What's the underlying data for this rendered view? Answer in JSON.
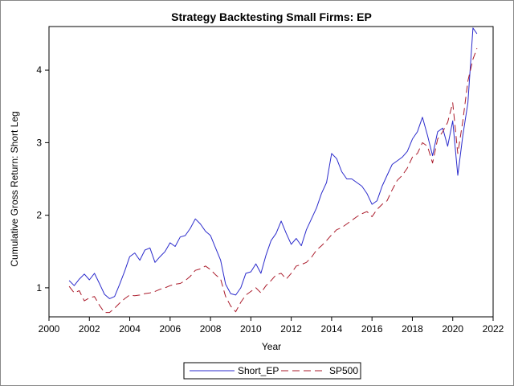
{
  "chart_data": {
    "type": "line",
    "title": "Strategy Backtesting Small Firms: EP",
    "xlabel": "Year",
    "ylabel": "Cumulative Gross Return: Short Leg",
    "xlim": [
      2000.0,
      2022.0
    ],
    "ylim": [
      0.6,
      4.6
    ],
    "x_ticks": [
      "2000",
      "2002",
      "2004",
      "2006",
      "2008",
      "2010",
      "2012",
      "2014",
      "2016",
      "2018",
      "2020",
      "2022"
    ],
    "y_ticks": [
      "1",
      "2",
      "3",
      "4"
    ],
    "grid": false,
    "legend_position": "bottom",
    "series": [
      {
        "name": "Short_EP",
        "color": "#2b2bcc",
        "style": "solid",
        "points": [
          [
            2001.0,
            1.1
          ],
          [
            2001.25,
            1.03
          ],
          [
            2001.5,
            1.12
          ],
          [
            2001.75,
            1.19
          ],
          [
            2002.0,
            1.11
          ],
          [
            2002.25,
            1.2
          ],
          [
            2002.5,
            1.06
          ],
          [
            2002.75,
            0.91
          ],
          [
            2003.0,
            0.85
          ],
          [
            2003.25,
            0.88
          ],
          [
            2003.5,
            1.05
          ],
          [
            2003.75,
            1.23
          ],
          [
            2004.0,
            1.43
          ],
          [
            2004.25,
            1.48
          ],
          [
            2004.5,
            1.38
          ],
          [
            2004.75,
            1.52
          ],
          [
            2005.0,
            1.55
          ],
          [
            2005.25,
            1.35
          ],
          [
            2005.5,
            1.43
          ],
          [
            2005.75,
            1.5
          ],
          [
            2006.0,
            1.62
          ],
          [
            2006.25,
            1.57
          ],
          [
            2006.5,
            1.7
          ],
          [
            2006.75,
            1.72
          ],
          [
            2007.0,
            1.82
          ],
          [
            2007.25,
            1.95
          ],
          [
            2007.5,
            1.88
          ],
          [
            2007.75,
            1.78
          ],
          [
            2008.0,
            1.72
          ],
          [
            2008.25,
            1.55
          ],
          [
            2008.5,
            1.38
          ],
          [
            2008.75,
            1.05
          ],
          [
            2009.0,
            0.92
          ],
          [
            2009.25,
            0.9
          ],
          [
            2009.5,
            1.0
          ],
          [
            2009.75,
            1.2
          ],
          [
            2010.0,
            1.22
          ],
          [
            2010.25,
            1.33
          ],
          [
            2010.5,
            1.2
          ],
          [
            2010.75,
            1.45
          ],
          [
            2011.0,
            1.65
          ],
          [
            2011.25,
            1.75
          ],
          [
            2011.5,
            1.92
          ],
          [
            2011.75,
            1.75
          ],
          [
            2012.0,
            1.6
          ],
          [
            2012.25,
            1.68
          ],
          [
            2012.5,
            1.58
          ],
          [
            2012.75,
            1.8
          ],
          [
            2013.0,
            1.95
          ],
          [
            2013.25,
            2.1
          ],
          [
            2013.5,
            2.3
          ],
          [
            2013.75,
            2.45
          ],
          [
            2014.0,
            2.85
          ],
          [
            2014.25,
            2.78
          ],
          [
            2014.5,
            2.6
          ],
          [
            2014.75,
            2.5
          ],
          [
            2015.0,
            2.5
          ],
          [
            2015.25,
            2.45
          ],
          [
            2015.5,
            2.4
          ],
          [
            2015.75,
            2.3
          ],
          [
            2016.0,
            2.15
          ],
          [
            2016.25,
            2.2
          ],
          [
            2016.5,
            2.4
          ],
          [
            2016.75,
            2.55
          ],
          [
            2017.0,
            2.7
          ],
          [
            2017.25,
            2.75
          ],
          [
            2017.5,
            2.8
          ],
          [
            2017.75,
            2.88
          ],
          [
            2018.0,
            3.05
          ],
          [
            2018.25,
            3.15
          ],
          [
            2018.5,
            3.35
          ],
          [
            2018.75,
            3.1
          ],
          [
            2019.0,
            2.82
          ],
          [
            2019.25,
            3.15
          ],
          [
            2019.5,
            3.2
          ],
          [
            2019.75,
            2.95
          ],
          [
            2020.0,
            3.3
          ],
          [
            2020.25,
            2.55
          ],
          [
            2020.5,
            3.1
          ],
          [
            2020.75,
            3.55
          ],
          [
            2021.0,
            4.58
          ],
          [
            2021.2,
            4.5
          ]
        ]
      },
      {
        "name": "SP500",
        "color": "#aa1a2a",
        "style": "dashed",
        "points": [
          [
            2001.0,
            1.02
          ],
          [
            2001.25,
            0.93
          ],
          [
            2001.5,
            0.96
          ],
          [
            2001.75,
            0.82
          ],
          [
            2002.0,
            0.86
          ],
          [
            2002.25,
            0.88
          ],
          [
            2002.5,
            0.76
          ],
          [
            2002.75,
            0.66
          ],
          [
            2003.0,
            0.66
          ],
          [
            2003.25,
            0.72
          ],
          [
            2003.5,
            0.79
          ],
          [
            2003.75,
            0.85
          ],
          [
            2004.0,
            0.9
          ],
          [
            2004.25,
            0.89
          ],
          [
            2004.5,
            0.9
          ],
          [
            2004.75,
            0.92
          ],
          [
            2005.0,
            0.93
          ],
          [
            2005.25,
            0.95
          ],
          [
            2005.5,
            0.98
          ],
          [
            2005.75,
            1.0
          ],
          [
            2006.0,
            1.03
          ],
          [
            2006.25,
            1.05
          ],
          [
            2006.5,
            1.06
          ],
          [
            2006.75,
            1.1
          ],
          [
            2007.0,
            1.16
          ],
          [
            2007.25,
            1.24
          ],
          [
            2007.5,
            1.26
          ],
          [
            2007.75,
            1.3
          ],
          [
            2008.0,
            1.25
          ],
          [
            2008.25,
            1.18
          ],
          [
            2008.5,
            1.12
          ],
          [
            2008.75,
            0.88
          ],
          [
            2009.0,
            0.75
          ],
          [
            2009.25,
            0.67
          ],
          [
            2009.5,
            0.8
          ],
          [
            2009.75,
            0.9
          ],
          [
            2010.0,
            0.95
          ],
          [
            2010.25,
            1.0
          ],
          [
            2010.5,
            0.93
          ],
          [
            2010.75,
            1.03
          ],
          [
            2011.0,
            1.1
          ],
          [
            2011.25,
            1.18
          ],
          [
            2011.5,
            1.2
          ],
          [
            2011.75,
            1.12
          ],
          [
            2012.0,
            1.2
          ],
          [
            2012.25,
            1.3
          ],
          [
            2012.5,
            1.32
          ],
          [
            2012.75,
            1.35
          ],
          [
            2013.0,
            1.42
          ],
          [
            2013.25,
            1.52
          ],
          [
            2013.5,
            1.58
          ],
          [
            2013.75,
            1.65
          ],
          [
            2014.0,
            1.73
          ],
          [
            2014.25,
            1.8
          ],
          [
            2014.5,
            1.83
          ],
          [
            2014.75,
            1.88
          ],
          [
            2015.0,
            1.93
          ],
          [
            2015.25,
            1.98
          ],
          [
            2015.5,
            2.02
          ],
          [
            2015.75,
            2.05
          ],
          [
            2016.0,
            1.98
          ],
          [
            2016.25,
            2.08
          ],
          [
            2016.5,
            2.15
          ],
          [
            2016.75,
            2.2
          ],
          [
            2017.0,
            2.35
          ],
          [
            2017.25,
            2.48
          ],
          [
            2017.5,
            2.55
          ],
          [
            2017.75,
            2.65
          ],
          [
            2018.0,
            2.8
          ],
          [
            2018.25,
            2.85
          ],
          [
            2018.5,
            3.0
          ],
          [
            2018.75,
            2.95
          ],
          [
            2019.0,
            2.72
          ],
          [
            2019.25,
            3.05
          ],
          [
            2019.5,
            3.15
          ],
          [
            2019.75,
            3.28
          ],
          [
            2020.0,
            3.55
          ],
          [
            2020.25,
            2.85
          ],
          [
            2020.5,
            3.3
          ],
          [
            2020.75,
            3.85
          ],
          [
            2021.0,
            4.15
          ],
          [
            2021.2,
            4.3
          ]
        ]
      }
    ]
  }
}
